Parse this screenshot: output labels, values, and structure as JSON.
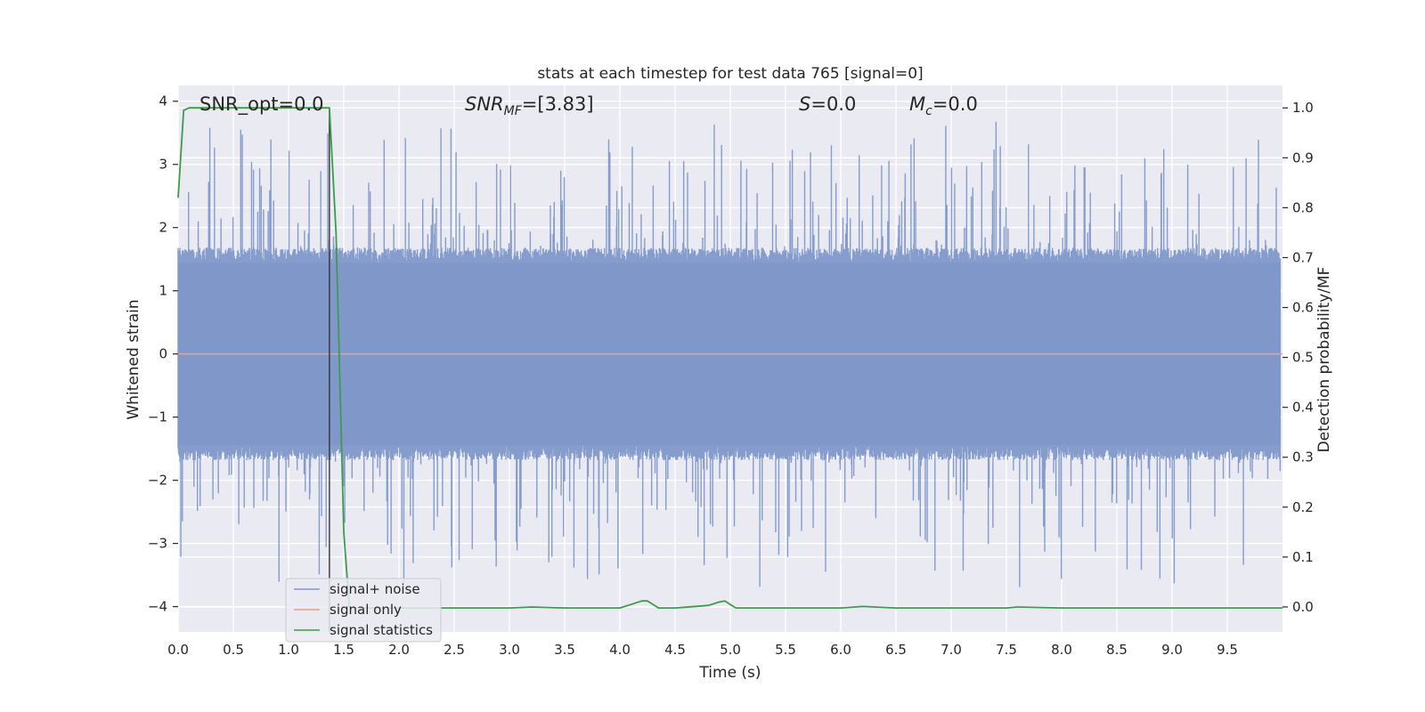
{
  "chart_data": {
    "type": "line",
    "title": "stats at each timestep for test data 765 [signal=0]",
    "xlabel": "Time (s)",
    "ylabel": "Whitened strain",
    "y2label": "Detection probability/MF",
    "xlim": [
      0.0,
      10.0
    ],
    "ylim": [
      -4.4,
      4.25
    ],
    "y2lim": [
      -0.05,
      1.045
    ],
    "x_ticks": [
      "0.0",
      "0.5",
      "1.0",
      "1.5",
      "2.0",
      "2.5",
      "3.0",
      "3.5",
      "4.0",
      "4.5",
      "5.0",
      "5.5",
      "6.0",
      "6.5",
      "7.0",
      "7.5",
      "8.0",
      "8.5",
      "9.0",
      "9.5"
    ],
    "y_ticks": [
      "4",
      "3",
      "2",
      "1",
      "0",
      "−1",
      "−2",
      "−3",
      "−4"
    ],
    "y2_ticks": [
      "1.0",
      "0.9",
      "0.8",
      "0.7",
      "0.6",
      "0.5",
      "0.4",
      "0.3",
      "0.2",
      "0.1",
      "0.0"
    ],
    "grid": true,
    "legend_position": "lower-left",
    "annotations": {
      "snr_opt": "SNR_opt=0.0",
      "snr_mf_sym": "SNR",
      "snr_mf_sub": "MF",
      "snr_mf_val": "=[3.83]",
      "s_sym": "S",
      "s_val": "=0.0",
      "mc_sym": "M",
      "mc_sub": "c",
      "mc_val": "=0.0"
    },
    "vertical_marker_x": 1.37,
    "series": [
      {
        "name": "signal+ noise",
        "color": "#7f98c9",
        "axis": "left",
        "noise_envelope": {
          "core_abs": 1.6,
          "peak_max": 4.05,
          "peak_min": -4.0
        }
      },
      {
        "name": "signal only",
        "color": "#e8a07f",
        "axis": "left",
        "x": [
          0.0,
          10.0
        ],
        "y": [
          0.0,
          0.0
        ]
      },
      {
        "name": "signal statistics",
        "color": "#3c9c4b",
        "axis": "right",
        "x": [
          0.0,
          0.05,
          0.1,
          0.2,
          0.5,
          0.8,
          1.0,
          1.2,
          1.3,
          1.37,
          1.43,
          1.5,
          1.55,
          1.6,
          2.0,
          2.5,
          3.0,
          3.2,
          3.5,
          4.0,
          4.1,
          4.2,
          4.25,
          4.35,
          4.5,
          4.8,
          4.9,
          4.95,
          5.05,
          5.2,
          5.5,
          6.0,
          6.2,
          6.5,
          7.0,
          7.5,
          7.6,
          8.0,
          8.5,
          9.0,
          9.5,
          10.0
        ],
        "y": [
          0.82,
          0.995,
          1.0,
          1.0,
          1.0,
          1.0,
          1.0,
          1.0,
          1.0,
          1.0,
          0.75,
          0.15,
          0.0,
          -0.002,
          -0.002,
          -0.002,
          -0.002,
          0.0,
          -0.002,
          -0.002,
          0.005,
          0.012,
          0.012,
          -0.002,
          -0.002,
          0.003,
          0.01,
          0.012,
          -0.002,
          -0.002,
          -0.002,
          -0.002,
          0.001,
          -0.002,
          -0.002,
          -0.002,
          0.0,
          -0.002,
          -0.002,
          -0.002,
          -0.002,
          -0.002
        ]
      }
    ]
  }
}
